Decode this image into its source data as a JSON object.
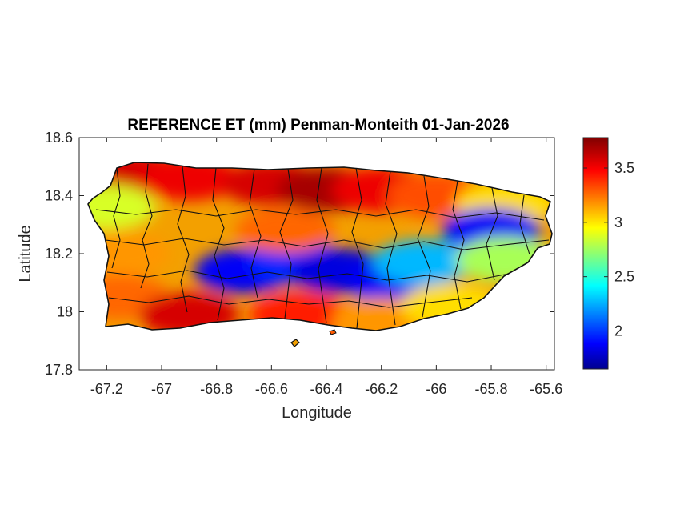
{
  "title": "REFERENCE ET (mm) Penman-Monteith 01-Jan-2026",
  "chart_data": {
    "type": "heatmap",
    "title": "REFERENCE ET (mm) Penman-Monteith 01-Jan-2026",
    "xlabel": "Longitude",
    "ylabel": "Latitude",
    "xlim": [
      -67.3,
      -65.57
    ],
    "ylim": [
      17.8,
      18.6
    ],
    "x_ticks": [
      -67.2,
      -67,
      -66.8,
      -66.6,
      -66.4,
      -66.2,
      -66,
      -65.8,
      -65.6
    ],
    "x_tick_labels": [
      "-67.2",
      "-67",
      "-66.8",
      "-66.6",
      "-66.4",
      "-66.2",
      "-66",
      "-65.8",
      "-65.6"
    ],
    "y_ticks": [
      17.8,
      18,
      18.2,
      18.4,
      18.6
    ],
    "y_tick_labels": [
      "17.8",
      "18",
      "18.2",
      "18.4",
      "18.6"
    ],
    "colorbar": {
      "colormap": "jet",
      "range": [
        1.65,
        3.78
      ],
      "ticks": [
        2,
        2.5,
        3,
        3.5
      ],
      "tick_labels": [
        "2",
        "2.5",
        "3",
        "3.5"
      ]
    },
    "field_description_points": [
      {
        "lon": -67.1,
        "lat": 18.47,
        "value": 3.6
      },
      {
        "lon": -66.9,
        "lat": 18.46,
        "value": 3.55
      },
      {
        "lon": -66.6,
        "lat": 18.44,
        "value": 3.6
      },
      {
        "lon": -66.4,
        "lat": 18.42,
        "value": 3.7
      },
      {
        "lon": -66.2,
        "lat": 18.42,
        "value": 3.55
      },
      {
        "lon": -66.0,
        "lat": 18.4,
        "value": 3.35
      },
      {
        "lon": -65.75,
        "lat": 18.37,
        "value": 3.05
      },
      {
        "lon": -67.2,
        "lat": 18.36,
        "value": 2.9
      },
      {
        "lon": -67.15,
        "lat": 18.2,
        "value": 3.2
      },
      {
        "lon": -67.15,
        "lat": 18.05,
        "value": 3.3
      },
      {
        "lon": -66.9,
        "lat": 17.99,
        "value": 3.6
      },
      {
        "lon": -66.7,
        "lat": 18.14,
        "value": 1.9
      },
      {
        "lon": -66.5,
        "lat": 18.17,
        "value": 2.0
      },
      {
        "lon": -66.35,
        "lat": 18.14,
        "value": 1.85
      },
      {
        "lon": -66.15,
        "lat": 18.1,
        "value": 1.9
      },
      {
        "lon": -66.05,
        "lat": 18.17,
        "value": 2.3
      },
      {
        "lon": -65.8,
        "lat": 18.28,
        "value": 1.9
      },
      {
        "lon": -65.75,
        "lat": 18.18,
        "value": 2.8
      },
      {
        "lon": -66.5,
        "lat": 17.99,
        "value": 3.45
      },
      {
        "lon": -66.2,
        "lat": 17.97,
        "value": 3.2
      },
      {
        "lon": -65.95,
        "lat": 18.02,
        "value": 3.05
      },
      {
        "lon": -66.55,
        "lat": 18.28,
        "value": 3.3
      }
    ]
  }
}
